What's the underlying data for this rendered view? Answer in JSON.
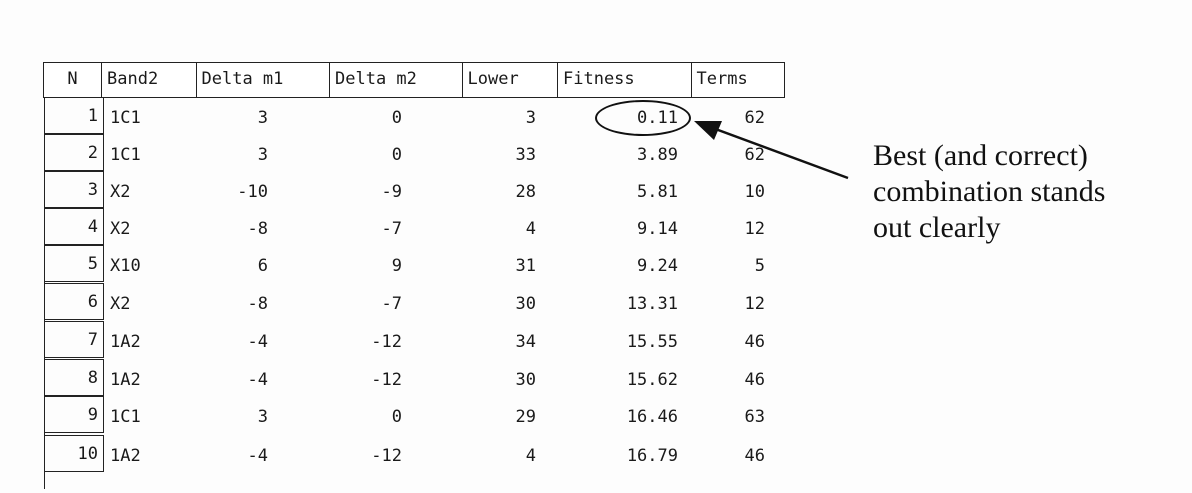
{
  "table": {
    "headers": [
      "N",
      "Band2",
      "Delta m1",
      "Delta m2",
      "Lower",
      "Fitness",
      "Terms"
    ],
    "rows": [
      {
        "n": "1",
        "band": "1C1",
        "dm1": "3",
        "dm2": "0",
        "lower": "3",
        "fitness": "0.11",
        "terms": "62"
      },
      {
        "n": "2",
        "band": "1C1",
        "dm1": "3",
        "dm2": "0",
        "lower": "33",
        "fitness": "3.89",
        "terms": "62"
      },
      {
        "n": "3",
        "band": "X2",
        "dm1": "-10",
        "dm2": "-9",
        "lower": "28",
        "fitness": "5.81",
        "terms": "10"
      },
      {
        "n": "4",
        "band": "X2",
        "dm1": "-8",
        "dm2": "-7",
        "lower": "4",
        "fitness": "9.14",
        "terms": "12"
      },
      {
        "n": "5",
        "band": "X10",
        "dm1": "6",
        "dm2": "9",
        "lower": "31",
        "fitness": "9.24",
        "terms": "5"
      },
      {
        "n": "6",
        "band": "X2",
        "dm1": "-8",
        "dm2": "-7",
        "lower": "30",
        "fitness": "13.31",
        "terms": "12"
      },
      {
        "n": "7",
        "band": "1A2",
        "dm1": "-4",
        "dm2": "-12",
        "lower": "34",
        "fitness": "15.55",
        "terms": "46"
      },
      {
        "n": "8",
        "band": "1A2",
        "dm1": "-4",
        "dm2": "-12",
        "lower": "30",
        "fitness": "15.62",
        "terms": "46"
      },
      {
        "n": "9",
        "band": "1C1",
        "dm1": "3",
        "dm2": "0",
        "lower": "29",
        "fitness": "16.46",
        "terms": "63"
      },
      {
        "n": "10",
        "band": "1A2",
        "dm1": "-4",
        "dm2": "-12",
        "lower": "4",
        "fitness": "16.79",
        "terms": "46"
      }
    ]
  },
  "annotation": {
    "line1": "Best (and correct)",
    "line2": "combination stands",
    "line3": "out clearly"
  },
  "highlight": {
    "circled_value": "0.11"
  }
}
